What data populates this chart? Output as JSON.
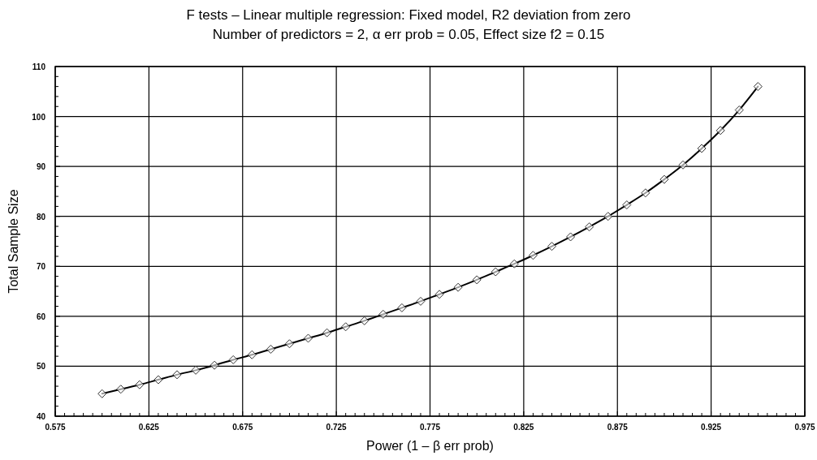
{
  "chart_data": {
    "type": "line",
    "title": "F tests – Linear multiple regression: Fixed model, R2 deviation from zero",
    "subtitle": "Number of predictors = 2, α err prob = 0.05, Effect size f2 = 0.15",
    "xlabel": "Power (1 – β err prob)",
    "ylabel": "Total Sample Size",
    "x": [
      0.6,
      0.61,
      0.62,
      0.63,
      0.64,
      0.65,
      0.66,
      0.67,
      0.68,
      0.69,
      0.7,
      0.71,
      0.72,
      0.73,
      0.74,
      0.75,
      0.76,
      0.77,
      0.78,
      0.79,
      0.8,
      0.81,
      0.82,
      0.83,
      0.84,
      0.85,
      0.86,
      0.87,
      0.88,
      0.89,
      0.9,
      0.91,
      0.92,
      0.93,
      0.94,
      0.95
    ],
    "series": [
      {
        "color": "#000000",
        "values": [
          44.5,
          45.4,
          46.3,
          47.3,
          48.3,
          49.2,
          50.2,
          51.3,
          52.3,
          53.4,
          54.5,
          55.6,
          56.7,
          57.9,
          59.1,
          60.4,
          61.7,
          63.0,
          64.4,
          65.8,
          67.3,
          68.9,
          70.5,
          72.2,
          74.0,
          75.9,
          77.9,
          80.0,
          82.3,
          84.7,
          87.4,
          90.3,
          93.6,
          97.2,
          101.3,
          106.0
        ]
      }
    ],
    "marker": "diamond",
    "line_style": "solid",
    "grid": true,
    "xlim": [
      0.575,
      0.975
    ],
    "ylim": [
      40,
      110
    ],
    "xticks": [
      0.575,
      {
        "value": 0.58,
        "label": null
      },
      {
        "value": 0.585,
        "label": null
      },
      {
        "value": 0.59,
        "label": null
      },
      {
        "value": 0.595,
        "label": null
      },
      {
        "value": 0.6,
        "label": null
      },
      {
        "value": 0.605,
        "label": null
      },
      {
        "value": 0.61,
        "label": null
      },
      {
        "value": 0.615,
        "label": null
      },
      {
        "value": 0.62,
        "label": null
      },
      0.625,
      {
        "value": 0.63,
        "label": null
      },
      {
        "value": 0.635,
        "label": null
      },
      {
        "value": 0.64,
        "label": null
      },
      {
        "value": 0.645,
        "label": null
      },
      {
        "value": 0.65,
        "label": null
      },
      {
        "value": 0.655,
        "label": null
      },
      {
        "value": 0.66,
        "label": null
      },
      {
        "value": 0.665,
        "label": null
      },
      {
        "value": 0.67,
        "label": null
      },
      0.675,
      {
        "value": 0.68,
        "label": null
      },
      {
        "value": 0.685,
        "label": null
      },
      {
        "value": 0.69,
        "label": null
      },
      {
        "value": 0.695,
        "label": null
      },
      {
        "value": 0.7,
        "label": null
      },
      {
        "value": 0.705,
        "label": null
      },
      {
        "value": 0.71,
        "label": null
      },
      {
        "value": 0.715,
        "label": null
      },
      {
        "value": 0.72,
        "label": null
      },
      0.725,
      {
        "value": 0.73,
        "label": null
      },
      {
        "value": 0.735,
        "label": null
      },
      {
        "value": 0.74,
        "label": null
      },
      {
        "value": 0.745,
        "label": null
      },
      {
        "value": 0.75,
        "label": null
      },
      {
        "value": 0.755,
        "label": null
      },
      {
        "value": 0.76,
        "label": null
      },
      {
        "value": 0.765,
        "label": null
      },
      {
        "value": 0.77,
        "label": null
      },
      0.775,
      {
        "value": 0.78,
        "label": null
      },
      {
        "value": 0.785,
        "label": null
      },
      {
        "value": 0.79,
        "label": null
      },
      {
        "value": 0.795,
        "label": null
      },
      {
        "value": 0.8,
        "label": null
      },
      {
        "value": 0.805,
        "label": null
      },
      {
        "value": 0.81,
        "label": null
      },
      {
        "value": 0.815,
        "label": null
      },
      {
        "value": 0.82,
        "label": null
      },
      0.825,
      {
        "value": 0.83,
        "label": null
      },
      {
        "value": 0.835,
        "label": null
      },
      {
        "value": 0.84,
        "label": null
      },
      {
        "value": 0.845,
        "label": null
      },
      {
        "value": 0.85,
        "label": null
      },
      {
        "value": 0.855,
        "label": null
      },
      {
        "value": 0.86,
        "label": null
      },
      {
        "value": 0.865,
        "label": null
      },
      {
        "value": 0.87,
        "label": null
      },
      0.875,
      {
        "value": 0.88,
        "label": null
      },
      {
        "value": 0.885,
        "label": null
      },
      {
        "value": 0.89,
        "label": null
      },
      {
        "value": 0.895,
        "label": null
      },
      {
        "value": 0.9,
        "label": null
      },
      {
        "value": 0.905,
        "label": null
      },
      {
        "value": 0.91,
        "label": null
      },
      {
        "value": 0.915,
        "label": null
      },
      {
        "value": 0.92,
        "label": null
      },
      0.925,
      {
        "value": 0.93,
        "label": null
      },
      {
        "value": 0.935,
        "label": null
      },
      {
        "value": 0.94,
        "label": null
      },
      {
        "value": 0.945,
        "label": null
      },
      {
        "value": 0.95,
        "label": null
      },
      {
        "value": 0.955,
        "label": null
      },
      {
        "value": 0.96,
        "label": null
      },
      {
        "value": 0.965,
        "label": null
      },
      {
        "value": 0.97,
        "label": null
      },
      0.975
    ],
    "yticks": [
      40,
      {
        "value": 42,
        "label": null
      },
      {
        "value": 44,
        "label": null
      },
      {
        "value": 46,
        "label": null
      },
      {
        "value": 48,
        "label": null
      },
      50,
      {
        "value": 52,
        "label": null
      },
      {
        "value": 54,
        "label": null
      },
      {
        "value": 56,
        "label": null
      },
      {
        "value": 58,
        "label": null
      },
      60,
      {
        "value": 62,
        "label": null
      },
      {
        "value": 64,
        "label": null
      },
      {
        "value": 66,
        "label": null
      },
      {
        "value": 68,
        "label": null
      },
      70,
      {
        "value": 72,
        "label": null
      },
      {
        "value": 74,
        "label": null
      },
      {
        "value": 76,
        "label": null
      },
      {
        "value": 78,
        "label": null
      },
      80,
      {
        "value": 82,
        "label": null
      },
      {
        "value": 84,
        "label": null
      },
      {
        "value": 86,
        "label": null
      },
      {
        "value": 88,
        "label": null
      },
      90,
      {
        "value": 92,
        "label": null
      },
      {
        "value": 94,
        "label": null
      },
      {
        "value": 96,
        "label": null
      },
      {
        "value": 98,
        "label": null
      },
      100,
      {
        "value": 102,
        "label": null
      },
      {
        "value": 104,
        "label": null
      },
      {
        "value": 106,
        "label": null
      },
      {
        "value": 108,
        "label": null
      },
      110
    ]
  }
}
